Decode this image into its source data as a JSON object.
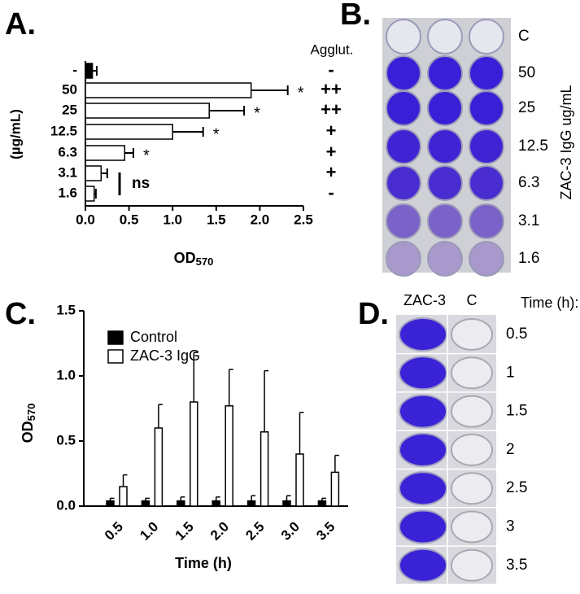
{
  "panels": {
    "a": "A.",
    "b": "B.",
    "c": "C.",
    "d": "D."
  },
  "chart_data": [
    {
      "type": "hbar",
      "categories": [
        "-",
        "50",
        "25",
        "12.5",
        "6.3",
        "3.1",
        "1.6"
      ],
      "values": [
        0.08,
        1.9,
        1.42,
        1.0,
        0.45,
        0.18,
        0.1
      ],
      "errors": [
        0.05,
        0.42,
        0.4,
        0.35,
        0.1,
        0.07,
        0.02
      ],
      "colors": [
        "#000000",
        "#ffffff",
        "#ffffff",
        "#ffffff",
        "#ffffff",
        "#ffffff",
        "#ffffff"
      ],
      "significance": [
        null,
        "*",
        "*",
        "*",
        "*",
        null,
        null
      ],
      "ns_label": "ns",
      "agglutination": {
        "title": "Agglut.",
        "values": [
          "-",
          "++",
          "++",
          "+",
          "+",
          "+",
          "-"
        ]
      },
      "ylabel": "(µg/mL)",
      "xlabel": "OD",
      "xlabel_sub": "570",
      "xlim": [
        0,
        2.5
      ],
      "xticks": [
        {
          "value": 0,
          "label": "0.0"
        },
        0.5,
        {
          "value": 1,
          "label": "1.0"
        },
        1.5,
        {
          "value": 2,
          "label": "2.0"
        },
        2.5
      ]
    },
    {
      "type": "groupbar",
      "categories": [
        "0.5",
        "1.0",
        "1.5",
        "2.0",
        "2.5",
        "3.0",
        "3.5"
      ],
      "series": [
        {
          "name": "Control",
          "color": "#000000",
          "values": [
            0.04,
            0.04,
            0.04,
            0.04,
            0.04,
            0.04,
            0.04
          ],
          "errors": [
            0.02,
            0.02,
            0.03,
            0.03,
            0.04,
            0.04,
            0.02
          ]
        },
        {
          "name": "ZAC-3 IgG",
          "color": "#ffffff",
          "values": [
            0.15,
            0.6,
            0.8,
            0.77,
            0.57,
            0.4,
            0.26
          ],
          "errors": [
            0.09,
            0.18,
            0.38,
            0.28,
            0.47,
            0.32,
            0.13
          ]
        }
      ],
      "ylabel": "OD",
      "ylabel_sub": "570",
      "xlabel": "Time (h)",
      "ylim": [
        0,
        1.5
      ],
      "yticks": [
        {
          "value": 0,
          "label": "0.0"
        },
        0.5,
        {
          "value": 1,
          "label": "1.0"
        },
        1.5
      ]
    }
  ],
  "plate_b": {
    "rows": [
      "C",
      "50",
      "25",
      "12.5",
      "6.3",
      "3.1",
      "1.6"
    ],
    "side_label": "ZAC-3 IgG ug/mL"
  },
  "plate_d": {
    "columns": [
      "ZAC-3",
      "C"
    ],
    "time_header": "Time (h):",
    "rows": [
      "0.5",
      "1",
      "1.5",
      "2",
      "2.5",
      "3",
      "3.5"
    ]
  }
}
